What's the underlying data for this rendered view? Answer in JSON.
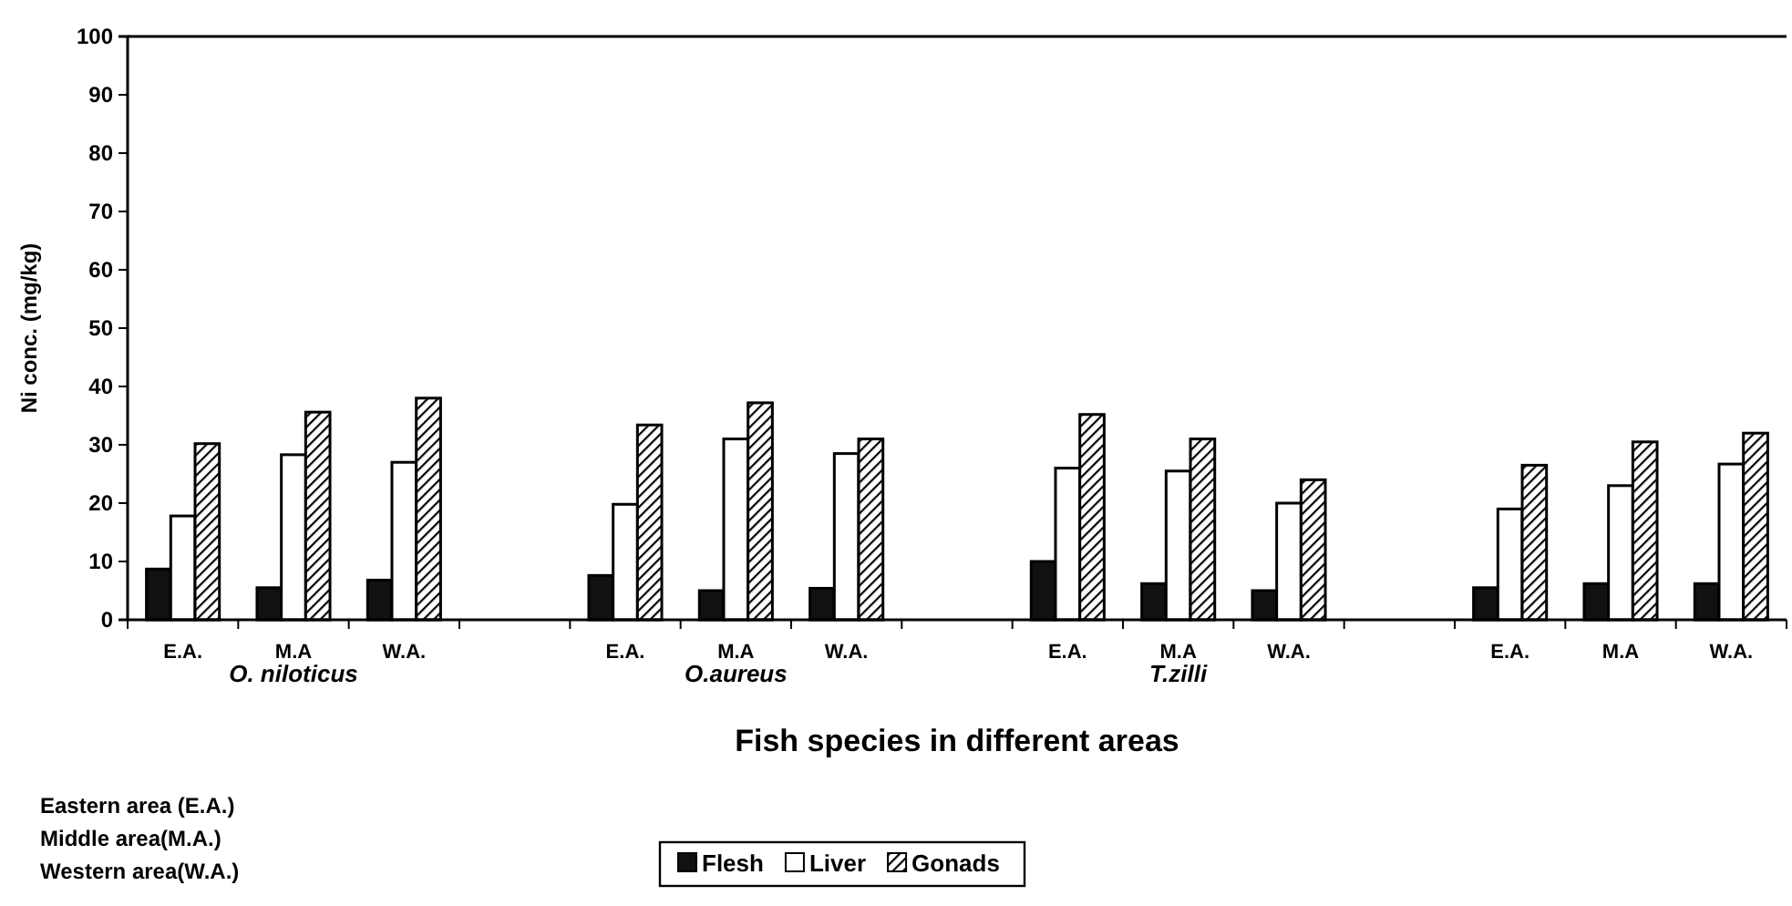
{
  "chart_data": {
    "type": "bar",
    "xlabel": "Fish species in different areas",
    "ylabel": "Ni conc. (mg/kg)",
    "categories": [
      "E.A.",
      "M.A",
      "W.A.",
      null,
      "E.A.",
      "M.A",
      "W.A.",
      null,
      "E.A.",
      "M.A",
      "W.A.",
      null,
      "E.A.",
      "M.A",
      "W.A."
    ],
    "series": [
      {
        "name": "Flesh",
        "color": "#111111",
        "values": [
          8.7,
          5.5,
          6.8,
          null,
          7.6,
          5,
          5.4,
          null,
          10,
          6.2,
          5,
          null,
          5.5,
          6.2,
          6.2
        ]
      },
      {
        "name": "Liver",
        "color": "#ffffff",
        "values": [
          17.8,
          28.3,
          27,
          null,
          19.8,
          31,
          28.5,
          null,
          26,
          25.5,
          20,
          null,
          19,
          23,
          26.7
        ]
      },
      {
        "name": "Gonads",
        "color": "#000000",
        "values": [
          30.2,
          35.6,
          38,
          null,
          33.4,
          37.2,
          31,
          null,
          35.2,
          31,
          24,
          null,
          26.5,
          30.5,
          32
        ]
      }
    ],
    "ylim": [
      0,
      100
    ],
    "yticks": [
      0,
      10,
      20,
      30,
      40,
      50,
      60,
      70,
      80,
      90,
      100
    ],
    "grid": false,
    "legend": "bottom",
    "annotations": [
      "O. niloticus",
      "O.aureus",
      "T.zilli",
      "Eastern area (E.A.)",
      "Middle area(M.A.)",
      "Western area(W.A.)"
    ]
  }
}
